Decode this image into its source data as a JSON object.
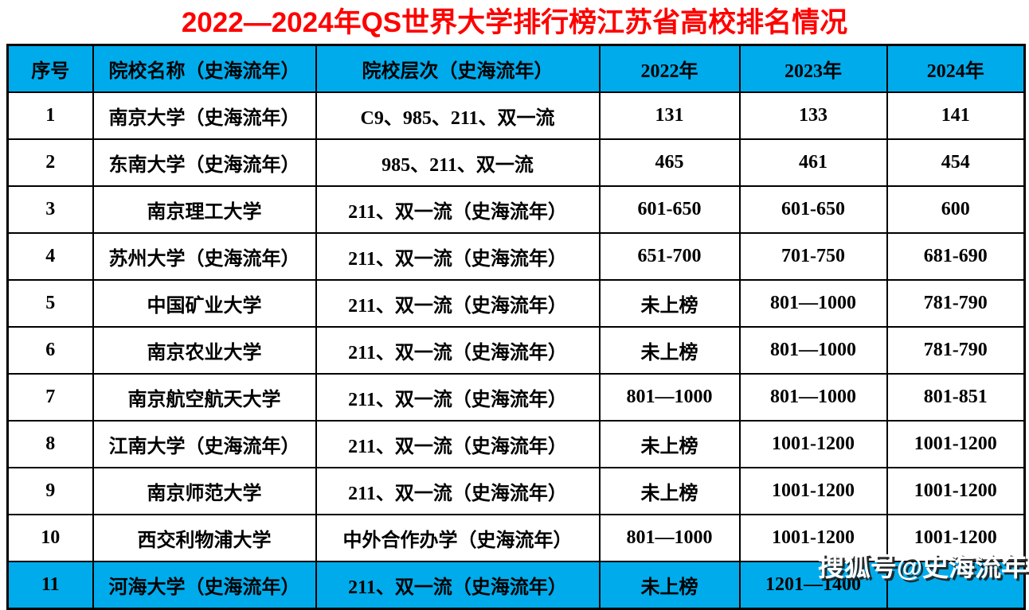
{
  "title": "2022—2024年QS世界大学排行榜江苏省高校排名情况",
  "colors": {
    "accent_blue": "#00abeb",
    "title_red": "#ff0000",
    "border_black": "#000000",
    "watermark_white": "#ffffff"
  },
  "table": {
    "headers": {
      "no": "序号",
      "name": "院校名称（史海流年）",
      "tier": "院校层次（史海流年）",
      "y2022": "2022年",
      "y2023": "2023年",
      "y2024": "2024年"
    },
    "rows": [
      {
        "no": "1",
        "name": "南京大学（史海流年）",
        "tier": "C9、985、211、双一流",
        "y2022": "131",
        "y2023": "133",
        "y2024": "141",
        "highlight": false
      },
      {
        "no": "2",
        "name": "东南大学（史海流年）",
        "tier": "985、211、双一流",
        "y2022": "465",
        "y2023": "461",
        "y2024": "454",
        "highlight": false
      },
      {
        "no": "3",
        "name": "南京理工大学",
        "tier": "211、双一流（史海流年）",
        "y2022": "601-650",
        "y2023": "601-650",
        "y2024": "600",
        "highlight": false
      },
      {
        "no": "4",
        "name": "苏州大学（史海流年）",
        "tier": "211、双一流（史海流年）",
        "y2022": "651-700",
        "y2023": "701-750",
        "y2024": "681-690",
        "highlight": false
      },
      {
        "no": "5",
        "name": "中国矿业大学",
        "tier": "211、双一流（史海流年）",
        "y2022": "未上榜",
        "y2023": "801—1000",
        "y2024": "781-790",
        "highlight": false
      },
      {
        "no": "6",
        "name": "南京农业大学",
        "tier": "211、双一流（史海流年）",
        "y2022": "未上榜",
        "y2023": "801—1000",
        "y2024": "781-790",
        "highlight": false
      },
      {
        "no": "7",
        "name": "南京航空航天大学",
        "tier": "211、双一流（史海流年）",
        "y2022": "801—1000",
        "y2023": "801—1000",
        "y2024": "801-851",
        "highlight": false
      },
      {
        "no": "8",
        "name": "江南大学（史海流年）",
        "tier": "211、双一流（史海流年）",
        "y2022": "未上榜",
        "y2023": "1001-1200",
        "y2024": "1001-1200",
        "highlight": false
      },
      {
        "no": "9",
        "name": "南京师范大学",
        "tier": "211、双一流（史海流年）",
        "y2022": "未上榜",
        "y2023": "1001-1200",
        "y2024": "1001-1200",
        "highlight": false
      },
      {
        "no": "10",
        "name": "西交利物浦大学",
        "tier": "中外合作办学（史海流年）",
        "y2022": "801—1000",
        "y2023": "1001-1200",
        "y2024": "1001-1200",
        "highlight": false
      },
      {
        "no": "11",
        "name": "河海大学（史海流年）",
        "tier": "211、双一流（史海流年）",
        "y2022": "未上榜",
        "y2023": "1201—1400",
        "y2024": "",
        "highlight": true
      }
    ]
  },
  "watermark": {
    "text": "搜狐号@史海流年"
  }
}
